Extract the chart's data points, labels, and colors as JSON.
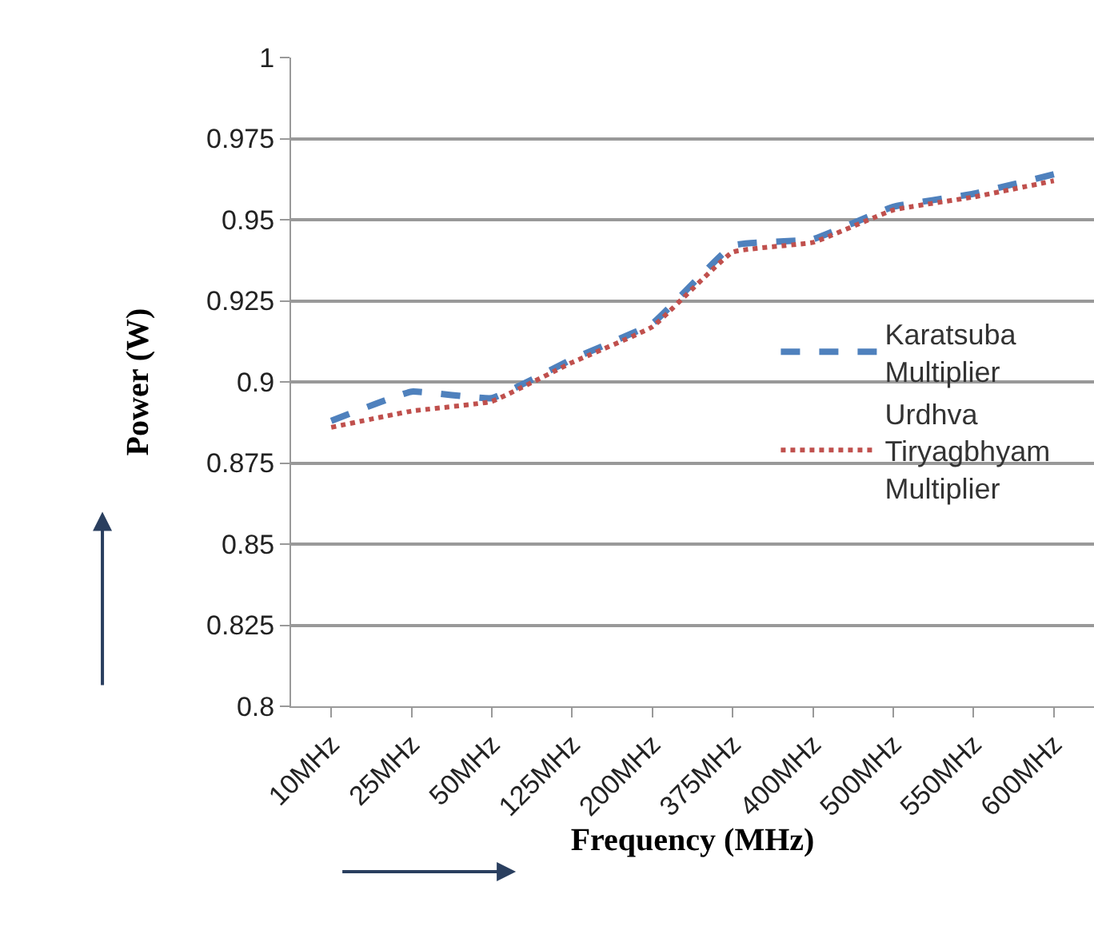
{
  "chart_data": {
    "type": "line",
    "xlabel": "Frequency (MHz)",
    "ylabel": "Power (W)",
    "categories": [
      "10MHz",
      "25MHz",
      "50MHz",
      "125MHz",
      "200MHz",
      "375MHz",
      "400MHz",
      "500MHz",
      "550MHz",
      "600MHz"
    ],
    "series": [
      {
        "name": "Karatsuba Multiplier",
        "color": "#4f81bd",
        "line_style": "dashed",
        "values": [
          0.888,
          0.897,
          0.895,
          0.907,
          0.918,
          0.942,
          0.944,
          0.954,
          0.958,
          0.964
        ]
      },
      {
        "name": "Urdhva Tiryagbhyam Multiplier",
        "color": "#c0504d",
        "line_style": "dotted",
        "values": [
          0.886,
          0.891,
          0.894,
          0.906,
          0.917,
          0.94,
          0.943,
          0.953,
          0.957,
          0.962
        ]
      }
    ],
    "ylim": [
      0.8,
      1
    ],
    "yticks": [
      0.8,
      0.825,
      0.85,
      0.875,
      0.9,
      0.925,
      0.95,
      0.975,
      1
    ],
    "grid": "y",
    "legend": "right",
    "marker": "none"
  }
}
